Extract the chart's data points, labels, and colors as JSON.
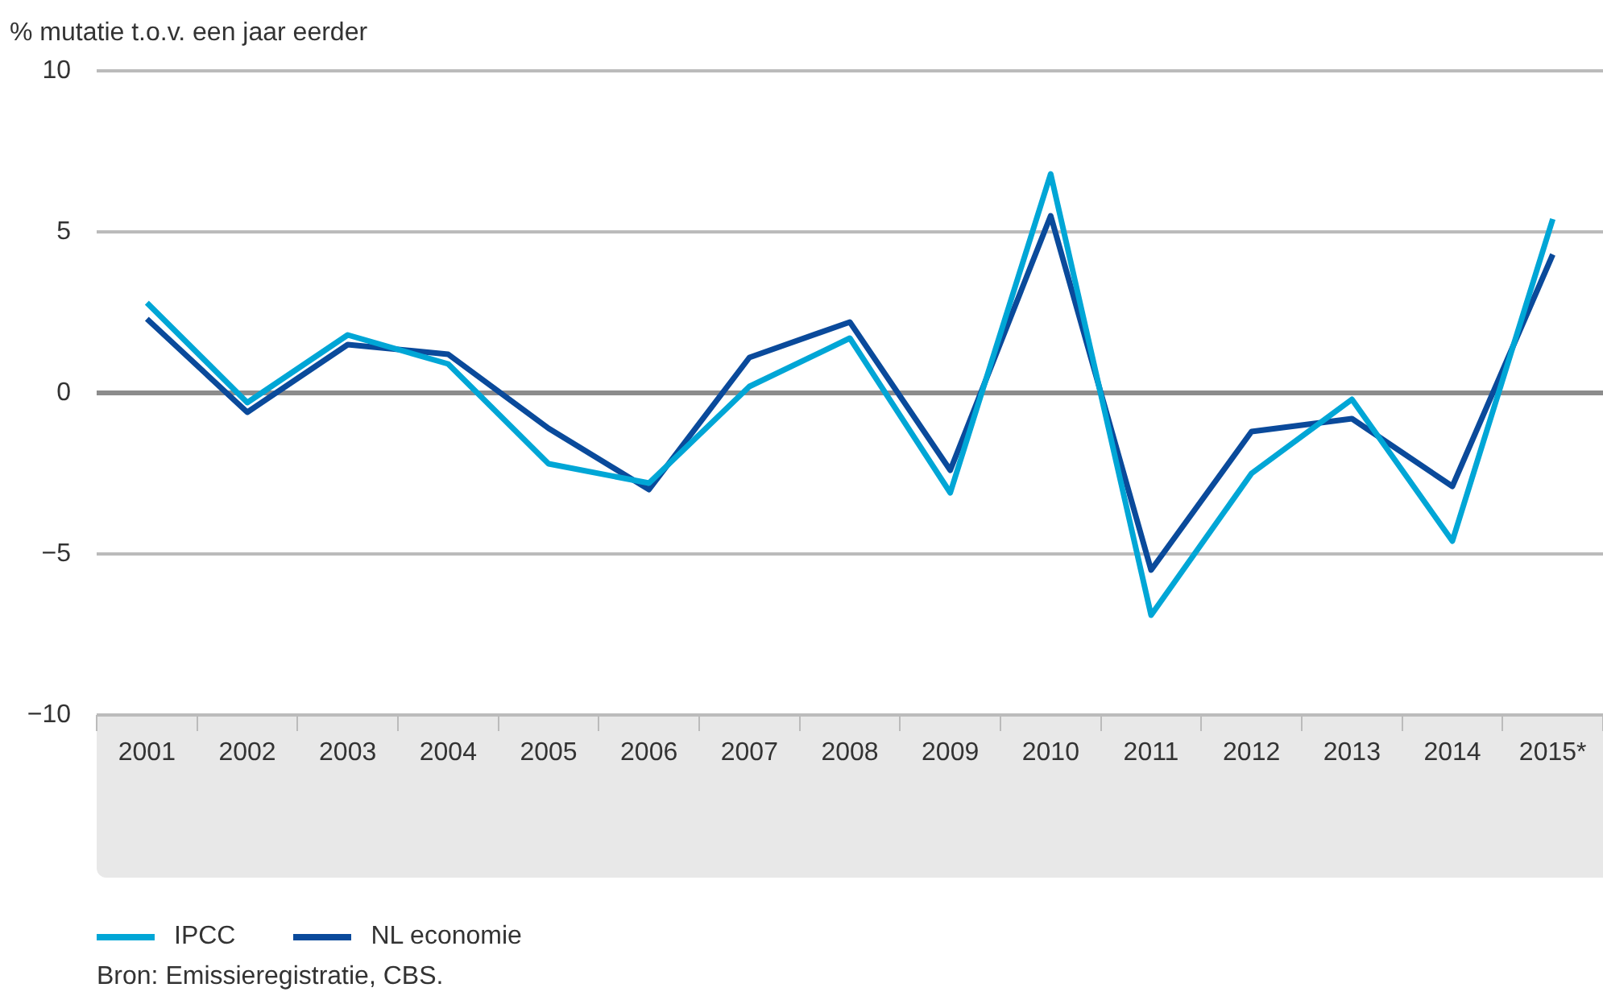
{
  "chart_data": {
    "type": "line",
    "ylabel": "% mutatie t.o.v. een jaar eerder",
    "categories": [
      "2001",
      "2002",
      "2003",
      "2004",
      "2005",
      "2006",
      "2007",
      "2008",
      "2009",
      "2010",
      "2011",
      "2012",
      "2013",
      "2014",
      "2015*"
    ],
    "series": [
      {
        "name": "IPCC",
        "color": "#00a6d6",
        "values": [
          2.8,
          -0.3,
          1.8,
          0.9,
          -2.2,
          -2.8,
          0.2,
          1.7,
          -3.1,
          6.8,
          -6.9,
          -2.5,
          -0.2,
          -4.6,
          5.4
        ]
      },
      {
        "name": "NL economie",
        "color": "#0a4a9b",
        "values": [
          2.3,
          -0.6,
          1.5,
          1.2,
          -1.1,
          -3.0,
          1.1,
          2.2,
          -2.4,
          5.5,
          -5.5,
          -1.2,
          -0.8,
          -2.9,
          4.3
        ]
      }
    ],
    "ylim": [
      -10,
      10
    ],
    "yticks": [
      -10,
      -5,
      0,
      5,
      10
    ],
    "ref_lines": [
      {
        "axis": "y",
        "value": 0,
        "color": "#8c8c8c"
      }
    ],
    "grid": "y",
    "legend": "bottom left",
    "marker": "none",
    "line_style": "solid",
    "annotations": [
      "Bron: Emissieregistratie, CBS."
    ]
  }
}
